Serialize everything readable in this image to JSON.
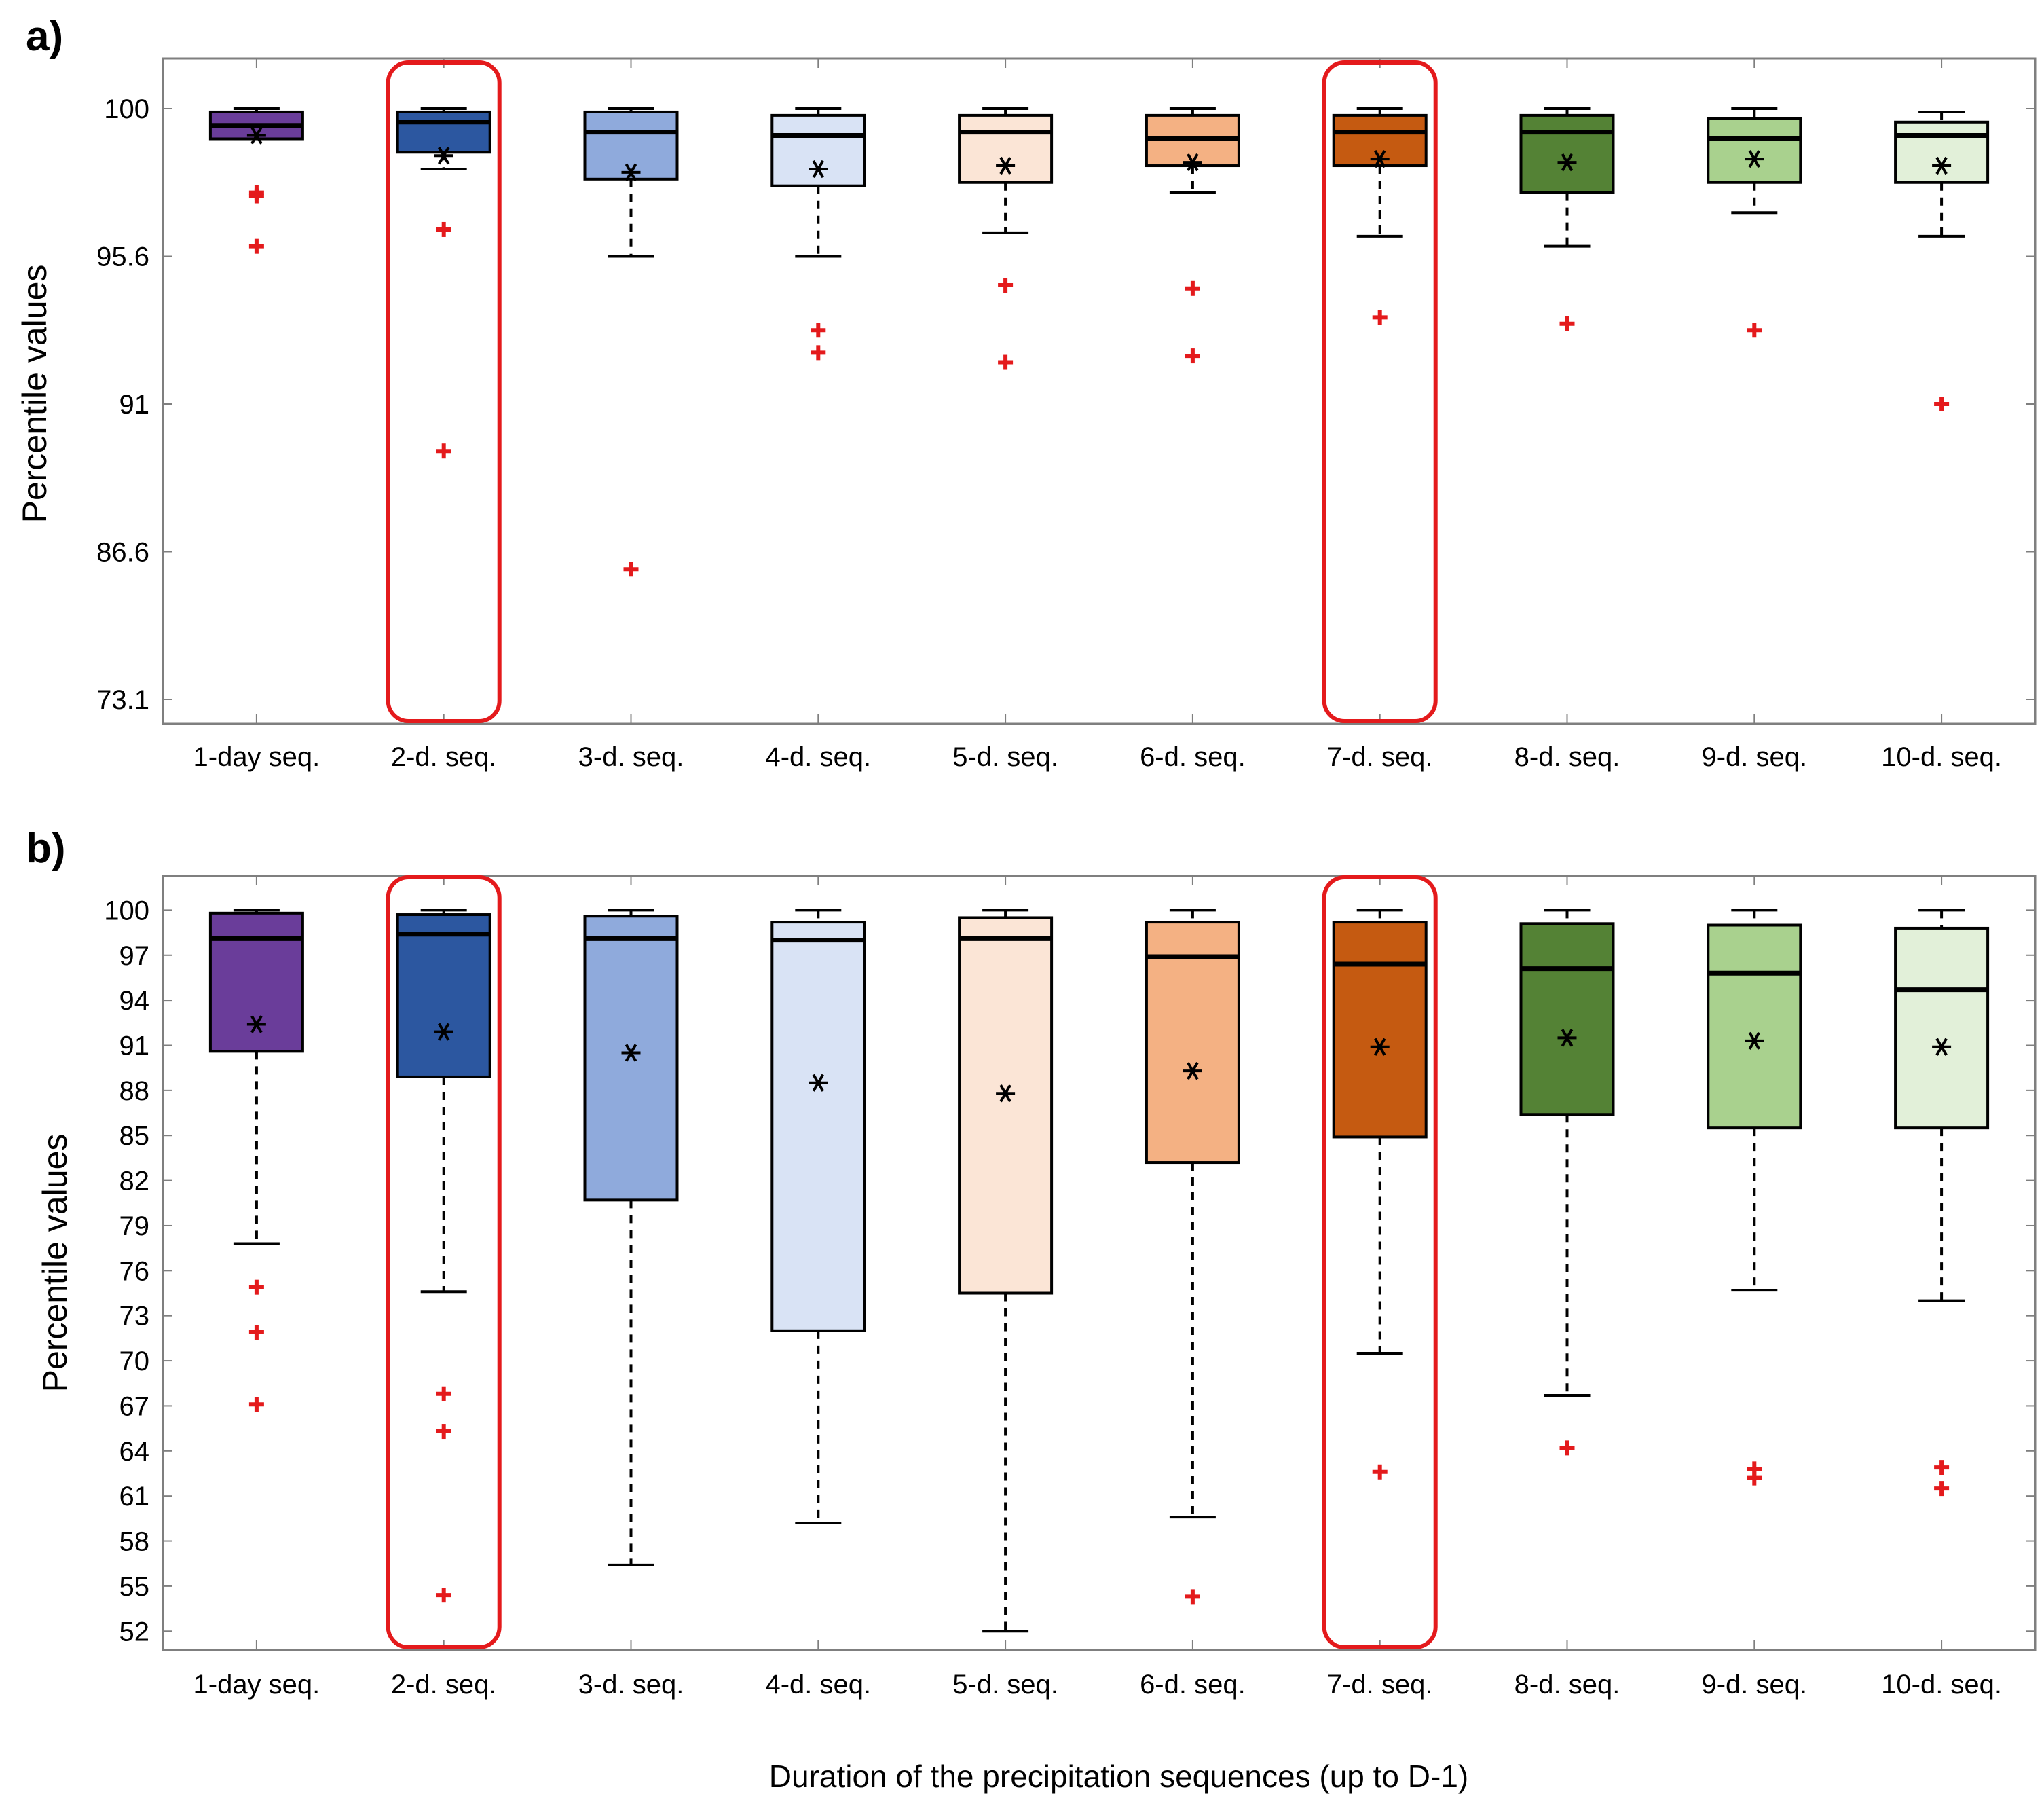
{
  "figure": {
    "xlabel": "Duration of the precipitation sequences (up to D-1)",
    "colors": {
      "outlier": "#e41a1c",
      "highlight": "#e41a1c",
      "box_stroke": "#000000",
      "axes_stroke": "#7f7f7f"
    }
  },
  "chart_data": [
    {
      "type": "boxplot",
      "panel_label": "a)",
      "ylabel": "Percentile values",
      "y_scale": "nonlinear (ticks equally spaced)",
      "y_ticks": [
        73.1,
        86.6,
        91,
        95.6,
        100
      ],
      "y_tick_labels": [
        "73.1",
        "86.6",
        "91",
        "95.6",
        "100"
      ],
      "categories": [
        "1-day seq.",
        "2-d. seq.",
        "3-d. seq.",
        "4-d. seq.",
        "5-d. seq.",
        "6-d. seq.",
        "7-d. seq.",
        "8-d. seq.",
        "9-d. seq.",
        "10-d. seq."
      ],
      "fills": [
        "#6a3d9a",
        "#2c57a0",
        "#8faadc",
        "#d9e3f5",
        "#fbe5d6",
        "#f4b183",
        "#c55a11",
        "#548235",
        "#a9d18e",
        "#e2f0d9"
      ],
      "highlighted": [
        "2-d. seq.",
        "7-d. seq."
      ],
      "boxes": [
        {
          "whisker_low": 99.1,
          "q1": 99.1,
          "median": 99.5,
          "q3": 99.9,
          "whisker_high": 100,
          "mean": 99.2,
          "outliers": [
            97.5,
            97.4,
            95.9
          ]
        },
        {
          "whisker_low": 98.2,
          "q1": 98.7,
          "median": 99.6,
          "q3": 99.9,
          "whisker_high": 100,
          "mean": 98.6,
          "outliers": [
            96.4,
            89.6
          ]
        },
        {
          "whisker_low": 95.6,
          "q1": 97.9,
          "median": 99.3,
          "q3": 99.9,
          "whisker_high": 100,
          "mean": 98.1,
          "outliers": [
            85.0
          ]
        },
        {
          "whisker_low": 95.6,
          "q1": 97.7,
          "median": 99.2,
          "q3": 99.8,
          "whisker_high": 100,
          "mean": 98.2,
          "outliers": [
            93.3,
            92.6
          ]
        },
        {
          "whisker_low": 96.3,
          "q1": 97.8,
          "median": 99.3,
          "q3": 99.8,
          "whisker_high": 100,
          "mean": 98.3,
          "outliers": [
            94.7,
            92.3
          ]
        },
        {
          "whisker_low": 97.5,
          "q1": 98.3,
          "median": 99.1,
          "q3": 99.8,
          "whisker_high": 100,
          "mean": 98.4,
          "outliers": [
            94.6,
            92.5
          ]
        },
        {
          "whisker_low": 96.2,
          "q1": 98.3,
          "median": 99.3,
          "q3": 99.8,
          "whisker_high": 100,
          "mean": 98.5,
          "outliers": [
            93.7
          ]
        },
        {
          "whisker_low": 95.9,
          "q1": 97.5,
          "median": 99.3,
          "q3": 99.8,
          "whisker_high": 100,
          "mean": 98.4,
          "outliers": [
            93.5
          ]
        },
        {
          "whisker_low": 96.9,
          "q1": 97.8,
          "median": 99.1,
          "q3": 99.7,
          "whisker_high": 100,
          "mean": 98.5,
          "outliers": [
            93.3
          ]
        },
        {
          "whisker_low": 96.2,
          "q1": 97.8,
          "median": 99.2,
          "q3": 99.6,
          "whisker_high": 99.9,
          "mean": 98.3,
          "outliers": [
            91.0
          ]
        }
      ]
    },
    {
      "type": "boxplot",
      "panel_label": "b)",
      "ylabel": "Percentile values",
      "y_scale": "linear",
      "ylim": [
        49.3,
        101.6
      ],
      "y_ticks": [
        52,
        55,
        58,
        61,
        64,
        67,
        70,
        73,
        76,
        79,
        82,
        85,
        88,
        91,
        94,
        97,
        100
      ],
      "y_tick_labels": [
        "52",
        "55",
        "58",
        "61",
        "64",
        "67",
        "70",
        "73",
        "76",
        "79",
        "82",
        "85",
        "88",
        "91",
        "94",
        "97",
        "100"
      ],
      "categories": [
        "1-day seq.",
        "2-d. seq.",
        "3-d. seq.",
        "4-d. seq.",
        "5-d. seq.",
        "6-d. seq.",
        "7-d. seq.",
        "8-d. seq.",
        "9-d. seq.",
        "10-d. seq."
      ],
      "fills": [
        "#6a3d9a",
        "#2c57a0",
        "#8faadc",
        "#d9e3f5",
        "#fbe5d6",
        "#f4b183",
        "#c55a11",
        "#548235",
        "#a9d18e",
        "#e2f0d9"
      ],
      "highlighted": [
        "2-d. seq.",
        "7-d. seq."
      ],
      "boxes": [
        {
          "whisker_low": 77.8,
          "q1": 90.6,
          "median": 98.1,
          "q3": 99.8,
          "whisker_high": 100,
          "mean": 92.4,
          "outliers": [
            74.9,
            71.9,
            67.1
          ]
        },
        {
          "whisker_low": 74.6,
          "q1": 88.9,
          "median": 98.4,
          "q3": 99.7,
          "whisker_high": 100,
          "mean": 91.9,
          "outliers": [
            67.8,
            65.3,
            54.4
          ]
        },
        {
          "whisker_low": 56.4,
          "q1": 80.7,
          "median": 98.1,
          "q3": 99.6,
          "whisker_high": 100,
          "mean": 90.5,
          "outliers": []
        },
        {
          "whisker_low": 59.2,
          "q1": 72.0,
          "median": 98.0,
          "q3": 99.2,
          "whisker_high": 100,
          "mean": 88.5,
          "outliers": []
        },
        {
          "whisker_low": 52.0,
          "q1": 74.5,
          "median": 98.1,
          "q3": 99.5,
          "whisker_high": 100,
          "mean": 87.8,
          "outliers": []
        },
        {
          "whisker_low": 59.6,
          "q1": 83.2,
          "median": 96.9,
          "q3": 99.2,
          "whisker_high": 100,
          "mean": 89.3,
          "outliers": [
            54.3
          ]
        },
        {
          "whisker_low": 70.5,
          "q1": 84.9,
          "median": 96.4,
          "q3": 99.2,
          "whisker_high": 100,
          "mean": 90.9,
          "outliers": [
            62.6
          ]
        },
        {
          "whisker_low": 67.7,
          "q1": 86.4,
          "median": 96.1,
          "q3": 99.1,
          "whisker_high": 100,
          "mean": 91.5,
          "outliers": [
            64.2
          ]
        },
        {
          "whisker_low": 74.7,
          "q1": 85.5,
          "median": 95.8,
          "q3": 99.0,
          "whisker_high": 100,
          "mean": 91.3,
          "outliers": [
            62.8,
            62.2
          ]
        },
        {
          "whisker_low": 74.0,
          "q1": 85.5,
          "median": 94.7,
          "q3": 98.8,
          "whisker_high": 100,
          "mean": 90.9,
          "outliers": [
            62.9,
            61.5
          ]
        }
      ]
    }
  ]
}
